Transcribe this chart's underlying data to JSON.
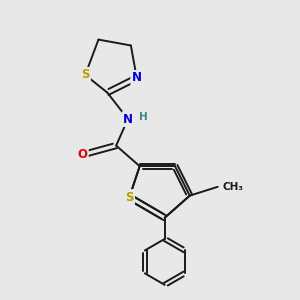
{
  "background_color": "#e8e8e8",
  "bond_color": "#1a1a1a",
  "bond_width": 1.4,
  "atom_colors": {
    "S": "#b8a000",
    "N": "#0000dd",
    "O": "#dd0000",
    "H": "#3a8888",
    "C": "#1a1a1a"
  },
  "font_size_atom": 8.5,
  "font_size_h": 7.5
}
